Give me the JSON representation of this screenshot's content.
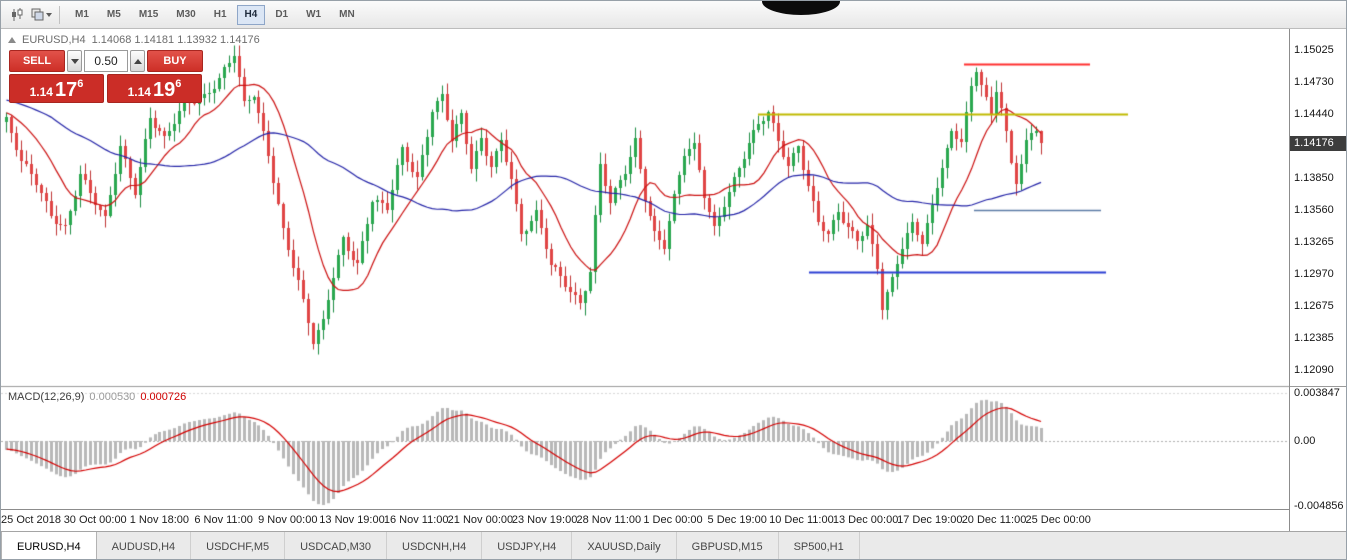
{
  "toolbar": {
    "timeframes": [
      "M1",
      "M5",
      "M15",
      "M30",
      "H1",
      "H4",
      "D1",
      "W1",
      "MN"
    ],
    "active_timeframe": "H4",
    "icons": [
      "candlestick-chart-icon",
      "templates-icon",
      "caret-down-icon"
    ]
  },
  "header": {
    "symbol": "EURUSD,H4",
    "ohlc": "1.14068 1.14181 1.13932 1.14176"
  },
  "trade_panel": {
    "sell_label": "SELL",
    "buy_label": "BUY",
    "lot_size": "0.50",
    "sell_price_big": "1.14",
    "sell_price_pips": "17",
    "sell_price_pipette": "6",
    "buy_price_big": "1.14",
    "buy_price_pips": "19",
    "buy_price_pipette": "6"
  },
  "chart_data": {
    "type": "candlestick",
    "symbol": "EURUSD",
    "timeframe": "H4",
    "current_price": "1.14176",
    "n_candles": 210,
    "price_range": {
      "top": 1.1522,
      "bottom": 1.1194
    },
    "y_ticks": [
      "1.15025",
      "1.14730",
      "1.14440",
      "1.13850",
      "1.13560",
      "1.13265",
      "1.12970",
      "1.12675",
      "1.12385",
      "1.12090"
    ],
    "x_labels": [
      "25 Oct 2018",
      "30 Oct 00:00",
      "1 Nov 18:00",
      "6 Nov 11:00",
      "9 Nov 00:00",
      "13 Nov 19:00",
      "16 Nov 11:00",
      "21 Nov 00:00",
      "23 Nov 19:00",
      "28 Nov 11:00",
      "1 Dec 00:00",
      "5 Dec 19:00",
      "10 Dec 11:00",
      "13 Dec 00:00",
      "17 Dec 19:00",
      "20 Dec 11:00",
      "25 Dec 00:00"
    ],
    "close_path_anchors": [
      [
        0,
        1.1438
      ],
      [
        3,
        1.1398
      ],
      [
        6,
        1.138
      ],
      [
        9,
        1.1352
      ],
      [
        12,
        1.1342
      ],
      [
        15,
        1.1388
      ],
      [
        18,
        1.136
      ],
      [
        20,
        1.1345
      ],
      [
        23,
        1.1415
      ],
      [
        26,
        1.1375
      ],
      [
        29,
        1.1442
      ],
      [
        32,
        1.1418
      ],
      [
        36,
        1.1452
      ],
      [
        40,
        1.1462
      ],
      [
        43,
        1.1478
      ],
      [
        46,
        1.1498
      ],
      [
        48,
        1.145
      ],
      [
        50,
        1.146
      ],
      [
        53,
        1.1408
      ],
      [
        56,
        1.134
      ],
      [
        59,
        1.129
      ],
      [
        62,
        1.1232
      ],
      [
        64,
        1.125
      ],
      [
        66,
        1.1295
      ],
      [
        68,
        1.133
      ],
      [
        71,
        1.1308
      ],
      [
        74,
        1.1365
      ],
      [
        77,
        1.1355
      ],
      [
        80,
        1.141
      ],
      [
        83,
        1.1385
      ],
      [
        86,
        1.145
      ],
      [
        88,
        1.1462
      ],
      [
        90,
        1.142
      ],
      [
        92,
        1.144
      ],
      [
        94,
        1.1392
      ],
      [
        96,
        1.142
      ],
      [
        98,
        1.1398
      ],
      [
        100,
        1.1422
      ],
      [
        102,
        1.1388
      ],
      [
        104,
        1.1332
      ],
      [
        107,
        1.135
      ],
      [
        110,
        1.1305
      ],
      [
        113,
        1.129
      ],
      [
        116,
        1.1272
      ],
      [
        118,
        1.13
      ],
      [
        120,
        1.1396
      ],
      [
        122,
        1.136
      ],
      [
        125,
        1.139
      ],
      [
        127,
        1.142
      ],
      [
        129,
        1.137
      ],
      [
        131,
        1.1336
      ],
      [
        133,
        1.1324
      ],
      [
        135,
        1.1366
      ],
      [
        137,
        1.1405
      ],
      [
        139,
        1.1412
      ],
      [
        141,
        1.137
      ],
      [
        143,
        1.134
      ],
      [
        145,
        1.1364
      ],
      [
        147,
        1.1385
      ],
      [
        150,
        1.1415
      ],
      [
        152,
        1.1432
      ],
      [
        154,
        1.1443
      ],
      [
        156,
        1.142
      ],
      [
        158,
        1.1398
      ],
      [
        160,
        1.1418
      ],
      [
        162,
        1.1378
      ],
      [
        164,
        1.1345
      ],
      [
        166,
        1.133
      ],
      [
        168,
        1.1352
      ],
      [
        170,
        1.1338
      ],
      [
        172,
        1.133
      ],
      [
        174,
        1.1344
      ],
      [
        176,
        1.1305
      ],
      [
        177,
        1.1268
      ],
      [
        179,
        1.129
      ],
      [
        181,
        1.132
      ],
      [
        183,
        1.134
      ],
      [
        185,
        1.1326
      ],
      [
        187,
        1.136
      ],
      [
        189,
        1.14
      ],
      [
        191,
        1.1428
      ],
      [
        193,
        1.142
      ],
      [
        195,
        1.1465
      ],
      [
        196,
        1.1482
      ],
      [
        197,
        1.147
      ],
      [
        198,
        1.1455
      ],
      [
        199,
        1.144
      ],
      [
        200,
        1.1466
      ],
      [
        201,
        1.1452
      ],
      [
        202,
        1.1428
      ],
      [
        203,
        1.14
      ],
      [
        204,
        1.1385
      ],
      [
        206,
        1.142
      ],
      [
        208,
        1.143
      ],
      [
        209,
        1.1418
      ]
    ],
    "candle_colors": {
      "up_fill": "#2aa84f",
      "up_border": "#1e8e44",
      "down_fill": "#e04545",
      "down_border": "#c03434"
    },
    "moving_averages": [
      {
        "period": 12,
        "color": "#cc1111"
      },
      {
        "period": 40,
        "color": "#2424a8"
      }
    ],
    "horizontal_lines": [
      {
        "name": "resistance-line-red",
        "price": 1.149,
        "color": "#ff2f2f",
        "x_from": 963,
        "x_to": 1089,
        "width": 2
      },
      {
        "name": "resistance-line-yellow",
        "price": 1.1444,
        "color": "#bfba00",
        "x_from": 757,
        "x_to": 1127,
        "width": 2
      },
      {
        "name": "support-line-navy",
        "price": 1.1356,
        "color": "#5b7ba6",
        "x_from": 973,
        "x_to": 1100,
        "width": 1.5
      },
      {
        "name": "support-line-blue",
        "price": 1.1299,
        "color": "#2b3fd4",
        "x_from": 808,
        "x_to": 1105,
        "width": 2
      }
    ],
    "macd": {
      "label": "MACD(12,26,9)",
      "value_main": "0.000530",
      "value_signal": "0.000726",
      "fast": 12,
      "slow": 26,
      "signal": 9,
      "levels": [
        "0.003847",
        "0.00",
        "-0.004856"
      ],
      "hist_color": "#b8b8b8",
      "signal_color": "#d40000"
    }
  },
  "tabs": [
    {
      "label": "EURUSD,H4",
      "active": true
    },
    {
      "label": "AUDUSD,H4",
      "active": false
    },
    {
      "label": "USDCHF,M5",
      "active": false
    },
    {
      "label": "USDCAD,M30",
      "active": false
    },
    {
      "label": "USDCNH,H4",
      "active": false
    },
    {
      "label": "USDJPY,H4",
      "active": false
    },
    {
      "label": "XAUUSD,Daily",
      "active": false
    },
    {
      "label": "GBPUSD,M15",
      "active": false
    },
    {
      "label": "SP500,H1",
      "active": false
    }
  ]
}
